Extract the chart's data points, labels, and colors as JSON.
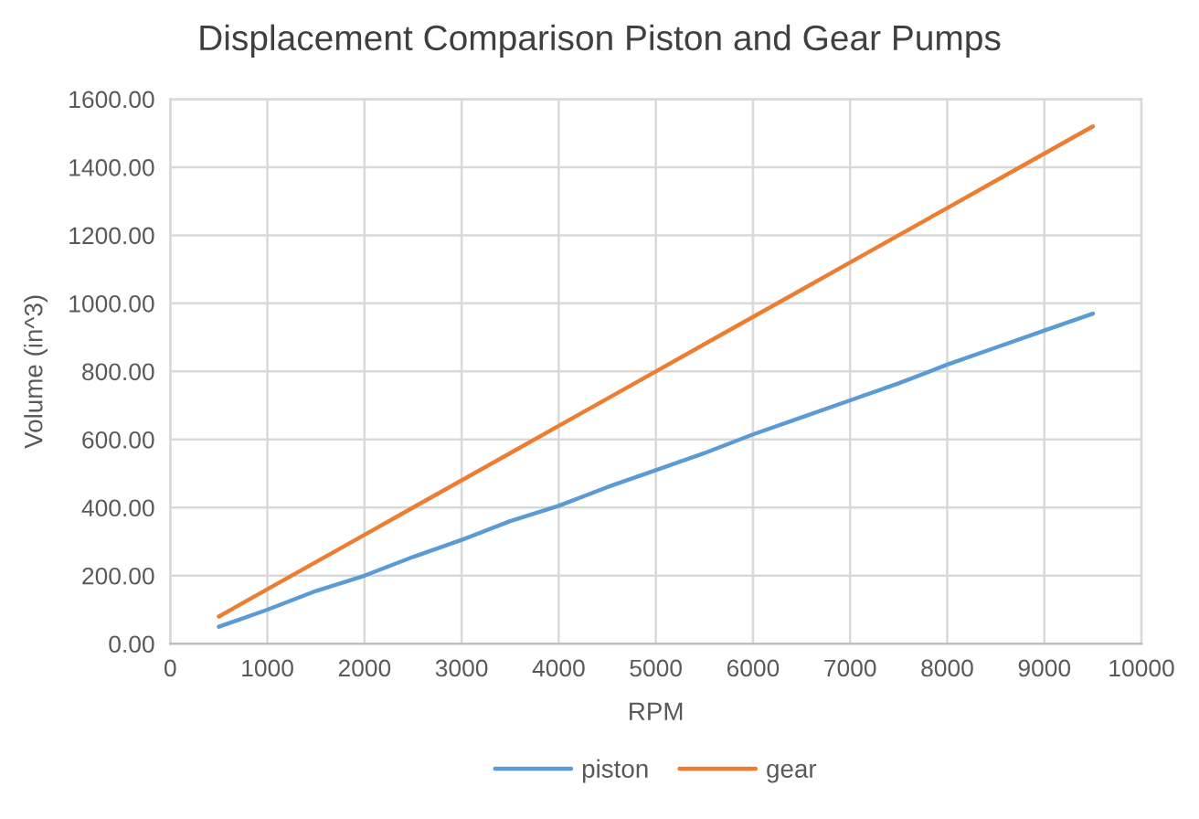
{
  "chart_data": {
    "type": "line",
    "title": "Displacement Comparison Piston and Gear Pumps",
    "xlabel": "RPM",
    "ylabel": "Volume (in^3)",
    "x": [
      500,
      1000,
      1500,
      2000,
      2500,
      3000,
      3500,
      4000,
      4500,
      5000,
      5500,
      6000,
      6500,
      7000,
      7500,
      8000,
      8500,
      9000,
      9500
    ],
    "series": [
      {
        "name": "piston",
        "color": "#5b9bd5",
        "values": [
          50,
          100,
          155,
          200,
          255,
          305,
          360,
          405,
          460,
          510,
          560,
          615,
          665,
          715,
          765,
          820,
          870,
          920,
          970
        ]
      },
      {
        "name": "gear",
        "color": "#ed7d31",
        "values": [
          80,
          160,
          240,
          320,
          400,
          480,
          560,
          640,
          720,
          800,
          880,
          960,
          1040,
          1120,
          1200,
          1280,
          1360,
          1440,
          1520
        ]
      }
    ],
    "xlim": [
      0,
      10000
    ],
    "xticks": [
      0,
      1000,
      2000,
      3000,
      4000,
      5000,
      6000,
      7000,
      8000,
      9000,
      10000
    ],
    "ylim": [
      0,
      1600
    ],
    "yticks": [
      {
        "value": 0,
        "label": "0.00"
      },
      {
        "value": 200,
        "label": "200.00"
      },
      {
        "value": 400,
        "label": "400.00"
      },
      {
        "value": 600,
        "label": "600.00"
      },
      {
        "value": 800,
        "label": "800.00"
      },
      {
        "value": 1000,
        "label": "1000.00"
      },
      {
        "value": 1200,
        "label": "1200.00"
      },
      {
        "value": 1400,
        "label": "1400.00"
      },
      {
        "value": 1600,
        "label": "1600.00"
      }
    ],
    "grid": true,
    "legend": "bottom",
    "marker": "none",
    "line_style": "solid"
  }
}
